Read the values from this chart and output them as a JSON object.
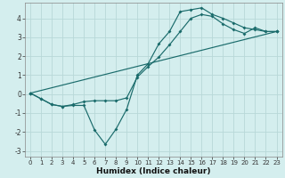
{
  "xlabel": "Humidex (Indice chaleur)",
  "bg_color": "#d4eeee",
  "line_color": "#1a6b6b",
  "grid_color": "#b8d8d8",
  "line1_x": [
    0,
    1,
    2,
    3,
    4,
    5,
    6,
    7,
    8,
    9,
    10,
    11,
    12,
    13,
    14,
    15,
    16,
    17,
    18,
    19,
    20,
    21,
    22,
    23
  ],
  "line1_y": [
    0.05,
    -0.25,
    -0.55,
    -0.65,
    -0.6,
    -0.6,
    -1.9,
    -2.65,
    -1.85,
    -0.8,
    1.0,
    1.6,
    2.65,
    3.3,
    4.35,
    4.45,
    4.55,
    4.2,
    4.0,
    3.75,
    3.5,
    3.4,
    3.3,
    3.3
  ],
  "line2_x": [
    0,
    1,
    2,
    3,
    4,
    5,
    6,
    7,
    8,
    9,
    10,
    11,
    12,
    13,
    14,
    15,
    16,
    17,
    18,
    19,
    20,
    21,
    22,
    23
  ],
  "line2_y": [
    0.05,
    -0.25,
    -0.55,
    -0.65,
    -0.55,
    -0.4,
    -0.35,
    -0.35,
    -0.35,
    -0.2,
    0.9,
    1.45,
    1.95,
    2.6,
    3.3,
    4.0,
    4.2,
    4.1,
    3.7,
    3.4,
    3.2,
    3.5,
    3.3,
    3.3
  ],
  "line3_x": [
    0,
    23
  ],
  "line3_y": [
    0.05,
    3.3
  ],
  "xlim": [
    -0.5,
    23.5
  ],
  "ylim": [
    -3.3,
    4.8
  ],
  "xticks": [
    0,
    1,
    2,
    3,
    4,
    5,
    6,
    7,
    8,
    9,
    10,
    11,
    12,
    13,
    14,
    15,
    16,
    17,
    18,
    19,
    20,
    21,
    22,
    23
  ],
  "yticks": [
    -3,
    -2,
    -1,
    0,
    1,
    2,
    3,
    4
  ],
  "tick_fontsize": 5.5,
  "xlabel_fontsize": 6.5
}
